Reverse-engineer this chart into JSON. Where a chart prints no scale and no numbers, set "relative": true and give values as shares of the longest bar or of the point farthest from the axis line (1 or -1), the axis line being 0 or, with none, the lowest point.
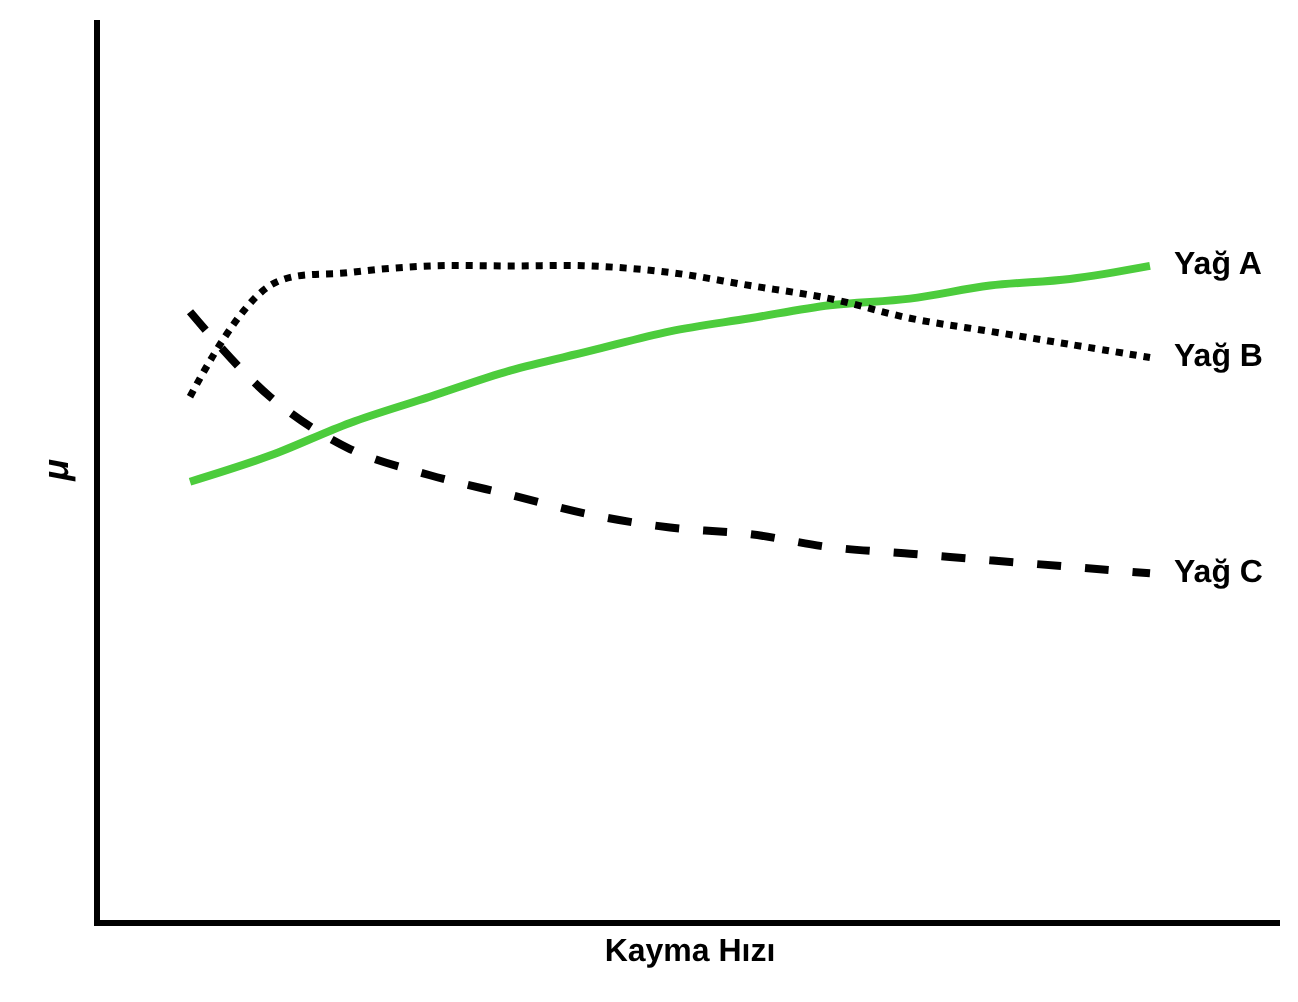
{
  "chart_data": {
    "type": "line",
    "relative": true,
    "xlabel": "Kayma Hızı",
    "ylabel": "μ",
    "categories": [
      null,
      null,
      null,
      null,
      null,
      null,
      null,
      null,
      null,
      null,
      null,
      null,
      null
    ],
    "legend": false,
    "tick_labels": false,
    "marker": "none",
    "series": [
      {
        "name": "Yağ A",
        "color": "#4ccc3c",
        "line_style": "solid",
        "values": [
          0.67,
          0.71,
          0.76,
          0.8,
          0.84,
          0.87,
          0.9,
          0.92,
          0.94,
          0.95,
          0.97,
          0.98,
          1.0
        ]
      },
      {
        "name": "Yağ B",
        "color": "#000000",
        "line_style": "dotted",
        "values": [
          0.8,
          0.97,
          0.99,
          1.0,
          1.0,
          1.0,
          0.99,
          0.97,
          0.95,
          0.92,
          0.9,
          0.88,
          0.86
        ]
      },
      {
        "name": "Yağ C",
        "color": "#000000",
        "line_style": "dashed",
        "values": [
          0.93,
          0.8,
          0.72,
          0.68,
          0.65,
          0.62,
          0.6,
          0.59,
          0.57,
          0.56,
          0.55,
          0.54,
          0.53
        ]
      }
    ]
  }
}
